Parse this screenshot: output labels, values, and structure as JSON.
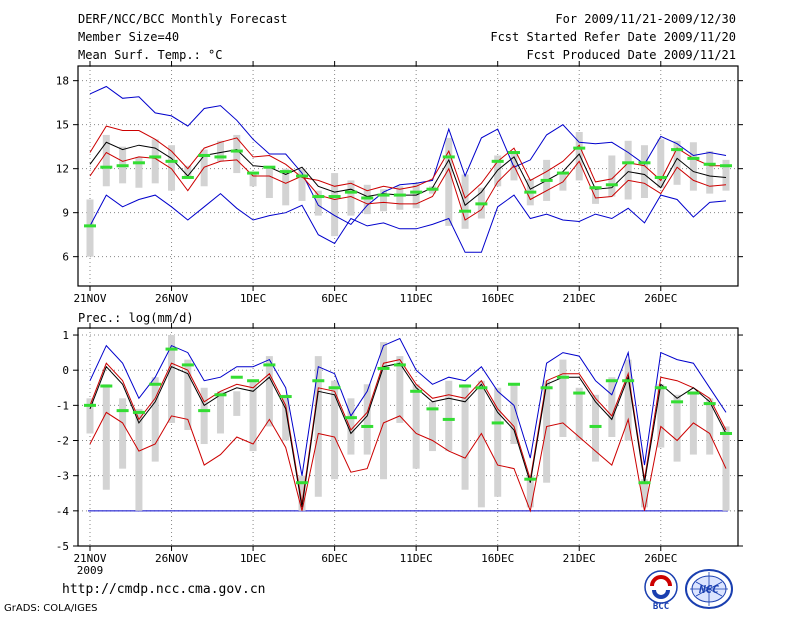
{
  "header": {
    "title": "DERF/NCC/BCC Monthly Forecast",
    "member_size": "Member Size=40",
    "variable": "Mean Surf. Temp.: °C",
    "period": "For 2009/11/21-2009/12/30",
    "refer_date": "Fcst Started Refer Date 2009/11/20",
    "produced_date": "Fcst Produced Date 2009/11/21"
  },
  "footer": {
    "url": "http://cmdp.ncc.cma.gov.cn",
    "grads_credit": "GrADS: COLA/IGES",
    "logo_bcc_text": "BCC",
    "logo_ncc_text": "NCC"
  },
  "colors": {
    "max_line": "#0000cc",
    "min_line": "#cc0000",
    "upper_line": "#cc0000",
    "mean_line": "#000000",
    "lower_line": "#cc0000",
    "box": "#d3d3d3",
    "green_bar": "#33dd33",
    "grid": "#888888",
    "zero_line": "#0000cc"
  },
  "chart_data": [
    {
      "type": "line",
      "title": "Mean Surf. Temp.: °C",
      "x": [
        21,
        22,
        23,
        24,
        25,
        26,
        27,
        28,
        29,
        30,
        31,
        32,
        33,
        34,
        35,
        36,
        37,
        38,
        39,
        40,
        41,
        42,
        43,
        44,
        45,
        46,
        47,
        48,
        49,
        50,
        51,
        52,
        53,
        54,
        55,
        56,
        57,
        58,
        59,
        60
      ],
      "x_tick_labels": [
        "21NOV",
        "26NOV",
        "1DEC",
        "6DEC",
        "11DEC",
        "16DEC",
        "21DEC",
        "26DEC"
      ],
      "x_tick_sub": "2009",
      "ylim": [
        4,
        19
      ],
      "yticks": [
        6,
        9,
        12,
        15,
        18
      ],
      "grid": true,
      "series": [
        {
          "name": "max",
          "values": [
            17.1,
            17.6,
            16.8,
            16.9,
            15.8,
            15.6,
            14.9,
            16.1,
            16.3,
            15.3,
            14.0,
            13.0,
            13.0,
            11.7,
            9.5,
            8.8,
            8.2,
            9.5,
            10.4,
            10.9,
            11.0,
            11.2,
            14.7,
            11.5,
            14.1,
            14.7,
            12.1,
            12.6,
            14.3,
            15.0,
            13.8,
            13.7,
            13.8,
            13.1,
            12.3,
            14.2,
            13.7,
            12.9,
            13.1,
            12.9
          ]
        },
        {
          "name": "upper",
          "values": [
            13.1,
            14.9,
            14.6,
            14.6,
            14.0,
            13.2,
            12.0,
            13.4,
            13.8,
            14.1,
            12.8,
            12.9,
            12.3,
            11.4,
            11.2,
            10.8,
            11.0,
            10.5,
            10.8,
            10.6,
            10.8,
            11.3,
            13.2,
            10.0,
            11.0,
            12.5,
            13.4,
            11.2,
            11.8,
            12.5,
            13.6,
            11.1,
            11.3,
            12.4,
            12.2,
            11.2,
            13.4,
            12.7,
            12.2,
            12.2
          ]
        },
        {
          "name": "mean",
          "values": [
            12.3,
            13.8,
            13.3,
            13.6,
            13.4,
            12.7,
            11.5,
            12.9,
            13.1,
            13.3,
            12.2,
            12.1,
            11.6,
            12.1,
            10.8,
            10.4,
            10.6,
            10.1,
            10.3,
            10.2,
            10.2,
            10.7,
            12.6,
            9.5,
            10.4,
            11.9,
            12.8,
            10.6,
            11.2,
            11.8,
            13.0,
            10.6,
            10.7,
            11.8,
            11.6,
            10.7,
            12.7,
            11.8,
            11.5,
            11.4
          ]
        },
        {
          "name": "lower",
          "values": [
            11.5,
            13.1,
            12.5,
            12.8,
            12.7,
            12.0,
            10.5,
            12.1,
            12.5,
            12.6,
            11.5,
            11.5,
            11.0,
            11.5,
            10.2,
            9.9,
            10.1,
            9.6,
            9.7,
            9.6,
            9.6,
            10.1,
            12.0,
            8.5,
            9.2,
            11.1,
            12.2,
            9.9,
            10.5,
            11.1,
            12.5,
            10.0,
            10.1,
            11.2,
            11.0,
            10.3,
            12.1,
            11.2,
            10.8,
            10.9
          ]
        },
        {
          "name": "min",
          "values": [
            8.1,
            10.2,
            9.4,
            9.9,
            10.2,
            9.4,
            8.5,
            9.4,
            10.3,
            9.3,
            8.5,
            8.8,
            9.0,
            9.5,
            7.5,
            6.9,
            8.6,
            8.1,
            8.3,
            7.9,
            7.9,
            8.2,
            8.6,
            6.3,
            6.3,
            9.4,
            10.2,
            8.6,
            8.9,
            8.5,
            8.4,
            8.9,
            8.6,
            9.3,
            8.3,
            10.2,
            9.9,
            8.7,
            9.7,
            9.8
          ]
        }
      ],
      "boxes": {
        "low": [
          6.0,
          10.8,
          11.0,
          10.7,
          11.0,
          10.5,
          11.4,
          10.8,
          12.5,
          11.7,
          10.8,
          10.0,
          9.5,
          9.8,
          8.8,
          7.4,
          8.8,
          8.9,
          9.1,
          9.2,
          9.3,
          10.3,
          8.1,
          7.9,
          8.6,
          10.8,
          11.2,
          9.5,
          9.8,
          10.5,
          11.2,
          9.6,
          10.1,
          9.9,
          10.0,
          10.7,
          10.9,
          10.5,
          10.3,
          10.5
        ],
        "high": [
          9.9,
          14.3,
          13.5,
          12.8,
          14.0,
          13.6,
          12.2,
          13.3,
          13.9,
          14.3,
          11.7,
          12.1,
          12.0,
          12.0,
          10.5,
          11.7,
          11.2,
          10.9,
          10.6,
          10.8,
          11.0,
          10.8,
          14.1,
          11.6,
          10.7,
          12.9,
          13.2,
          11.3,
          12.6,
          11.6,
          14.5,
          10.8,
          12.9,
          13.9,
          13.6,
          14.0,
          13.9,
          13.8,
          13.2,
          12.6
        ]
      },
      "median": [
        8.1,
        12.1,
        12.2,
        12.4,
        12.8,
        12.5,
        11.4,
        12.9,
        12.8,
        13.2,
        11.7,
        12.1,
        11.8,
        11.5,
        10.1,
        10.1,
        10.4,
        10.0,
        10.2,
        10.2,
        10.4,
        10.6,
        12.8,
        9.1,
        9.6,
        12.5,
        13.1,
        10.4,
        11.2,
        11.7,
        13.4,
        10.7,
        10.9,
        12.4,
        12.4,
        11.4,
        13.3,
        12.7,
        12.3,
        12.2
      ]
    },
    {
      "type": "line",
      "title": "Prec.: log(mm/d)",
      "x": [
        21,
        22,
        23,
        24,
        25,
        26,
        27,
        28,
        29,
        30,
        31,
        32,
        33,
        34,
        35,
        36,
        37,
        38,
        39,
        40,
        41,
        42,
        43,
        44,
        45,
        46,
        47,
        48,
        49,
        50,
        51,
        52,
        53,
        54,
        55,
        56,
        57,
        58,
        59,
        60
      ],
      "x_tick_labels": [
        "21NOV",
        "26NOV",
        "1DEC",
        "6DEC",
        "11DEC",
        "16DEC",
        "21DEC",
        "26DEC"
      ],
      "x_tick_sub": "2009",
      "ylim": [
        -5,
        1.2
      ],
      "yticks": [
        -5,
        -4,
        -3,
        -2,
        -1,
        0,
        1
      ],
      "grid": true,
      "series": [
        {
          "name": "max",
          "values": [
            -0.3,
            0.7,
            0.2,
            -0.8,
            -0.2,
            0.7,
            0.5,
            -0.3,
            -0.2,
            0.1,
            0.1,
            0.3,
            -0.5,
            -3.0,
            0.1,
            -0.1,
            -1.3,
            -0.6,
            0.7,
            0.9,
            0.0,
            -0.4,
            -0.2,
            -0.3,
            0.1,
            -0.6,
            -1.0,
            -2.5,
            0.2,
            0.5,
            0.4,
            -0.3,
            -0.7,
            0.5,
            -2.7,
            0.5,
            0.3,
            0.2,
            -0.5,
            -1.2
          ]
        },
        {
          "name": "upper",
          "values": [
            -1.0,
            0.2,
            -0.3,
            -1.4,
            -0.8,
            0.2,
            0.0,
            -0.9,
            -0.6,
            -0.4,
            -0.5,
            -0.1,
            -1.0,
            -3.8,
            -0.5,
            -0.6,
            -1.7,
            -1.2,
            0.2,
            0.3,
            -0.4,
            -0.8,
            -0.7,
            -0.8,
            -0.3,
            -1.1,
            -1.6,
            -3.1,
            -0.3,
            -0.1,
            -0.1,
            -0.8,
            -1.3,
            -0.1,
            -3.1,
            -0.2,
            -0.3,
            -0.5,
            -0.8,
            -1.7
          ]
        },
        {
          "name": "mean",
          "values": [
            -1.1,
            0.1,
            -0.4,
            -1.5,
            -0.9,
            0.1,
            -0.1,
            -1.0,
            -0.7,
            -0.5,
            -0.6,
            -0.2,
            -1.1,
            -3.9,
            -0.6,
            -0.7,
            -1.8,
            -1.3,
            0.1,
            0.2,
            -0.5,
            -0.9,
            -0.8,
            -0.9,
            -0.4,
            -1.2,
            -1.7,
            -3.2,
            -0.4,
            -0.2,
            -0.2,
            -0.9,
            -1.4,
            -0.2,
            -3.2,
            -0.4,
            -0.8,
            -0.5,
            -0.9,
            -1.8
          ]
        },
        {
          "name": "lower",
          "values": [
            -2.1,
            -1.2,
            -1.5,
            -2.3,
            -2.1,
            -1.3,
            -1.4,
            -2.7,
            -2.4,
            -1.9,
            -2.1,
            -1.4,
            -2.2,
            -4.0,
            -1.8,
            -1.9,
            -2.9,
            -2.8,
            -1.5,
            -1.3,
            -1.8,
            -2.0,
            -2.3,
            -2.5,
            -1.8,
            -2.7,
            -2.8,
            -4.0,
            -1.6,
            -1.5,
            -1.9,
            -2.3,
            -2.7,
            -1.4,
            -4.0,
            -1.6,
            -2.0,
            -1.5,
            -1.8,
            -2.8
          ]
        },
        {
          "name": "min",
          "values": [
            -4,
            -4,
            -4,
            -4,
            -4,
            -4,
            -4,
            -4,
            -4,
            -4,
            -4,
            -4,
            -4,
            -4,
            -4,
            -4,
            -4,
            -4,
            -4,
            -4,
            -4,
            -4,
            -4,
            -4,
            -4,
            -4,
            -4,
            -4,
            -4,
            -4,
            -4,
            -4,
            -4,
            -4,
            -4,
            -4,
            -4,
            -4,
            -4,
            -4
          ]
        }
      ],
      "boxes": {
        "low": [
          -1.8,
          -3.4,
          -2.8,
          -4.0,
          -2.6,
          -1.5,
          -1.7,
          -2.1,
          -1.8,
          -1.3,
          -2.3,
          -1.6,
          -2.0,
          -4.0,
          -3.6,
          -3.1,
          -2.4,
          -2.4,
          -3.1,
          -1.5,
          -2.8,
          -2.3,
          -2.3,
          -3.4,
          -3.9,
          -3.6,
          -2.1,
          -3.9,
          -3.2,
          -1.9,
          -2.0,
          -2.6,
          -1.9,
          -2.0,
          -3.9,
          -2.2,
          -2.6,
          -2.4,
          -2.4,
          -4.0
        ],
        "high": [
          -0.8,
          -0.4,
          -0.8,
          -1.1,
          -0.2,
          1.0,
          0.3,
          -0.5,
          -0.6,
          -0.6,
          -0.3,
          0.4,
          -0.7,
          -3.0,
          0.4,
          -0.3,
          -0.8,
          -0.4,
          0.8,
          0.4,
          -0.4,
          -0.9,
          -0.3,
          -0.4,
          -0.3,
          -0.5,
          -0.4,
          -3.0,
          -0.3,
          0.3,
          -0.5,
          -0.7,
          -0.2,
          0.3,
          -3.1,
          -0.4,
          -0.7,
          -0.6,
          -0.8,
          -1.6
        ]
      },
      "median": [
        -1.0,
        -0.45,
        -1.15,
        -1.2,
        -0.4,
        0.6,
        0.15,
        -1.15,
        -0.7,
        -0.2,
        -0.3,
        0.15,
        -0.75,
        -3.2,
        -0.3,
        -0.5,
        -1.35,
        -1.6,
        0.05,
        0.15,
        -0.6,
        -1.1,
        -1.4,
        -0.45,
        -0.5,
        -1.5,
        -0.4,
        -3.1,
        -0.5,
        -0.2,
        -0.65,
        -1.6,
        -0.3,
        -0.3,
        -3.2,
        -0.5,
        -0.9,
        -0.65,
        -0.95,
        -1.8
      ]
    }
  ]
}
